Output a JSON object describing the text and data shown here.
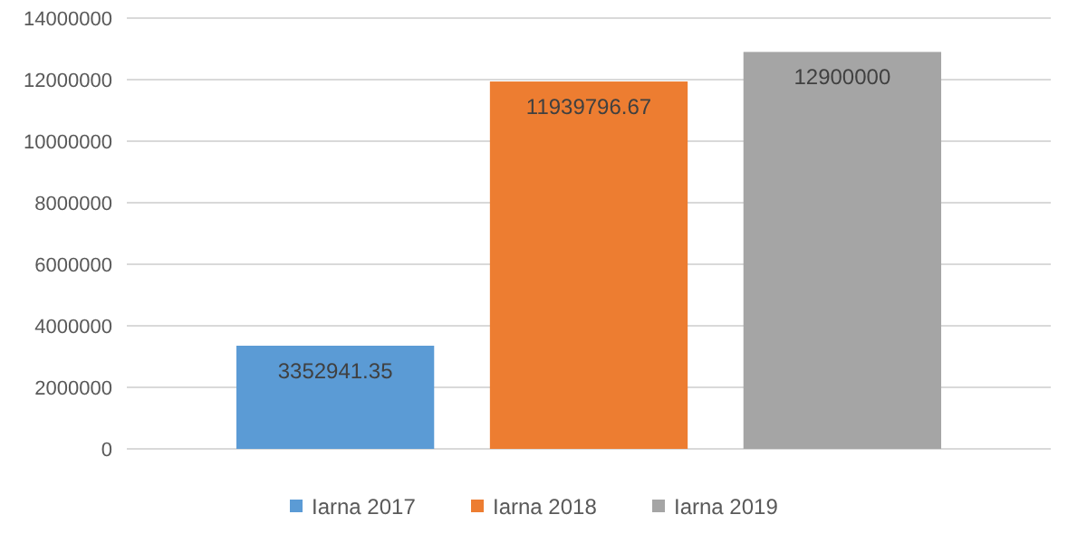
{
  "chart_data": {
    "type": "bar",
    "categories": [
      null
    ],
    "series": [
      {
        "name": "Iarna 2017",
        "color": "#5b9bd5",
        "values": [
          3352941.35
        ]
      },
      {
        "name": "Iarna 2018",
        "color": "#ed7d31",
        "values": [
          11939796.67
        ]
      },
      {
        "name": "Iarna 2019",
        "color": "#a5a5a5",
        "values": [
          12900000
        ]
      }
    ],
    "ylim": [
      0,
      14000000
    ],
    "yticks": [
      0,
      2000000,
      4000000,
      6000000,
      8000000,
      10000000,
      12000000,
      14000000
    ],
    "grid": "y",
    "legend": "bottom",
    "data_labels": true
  }
}
